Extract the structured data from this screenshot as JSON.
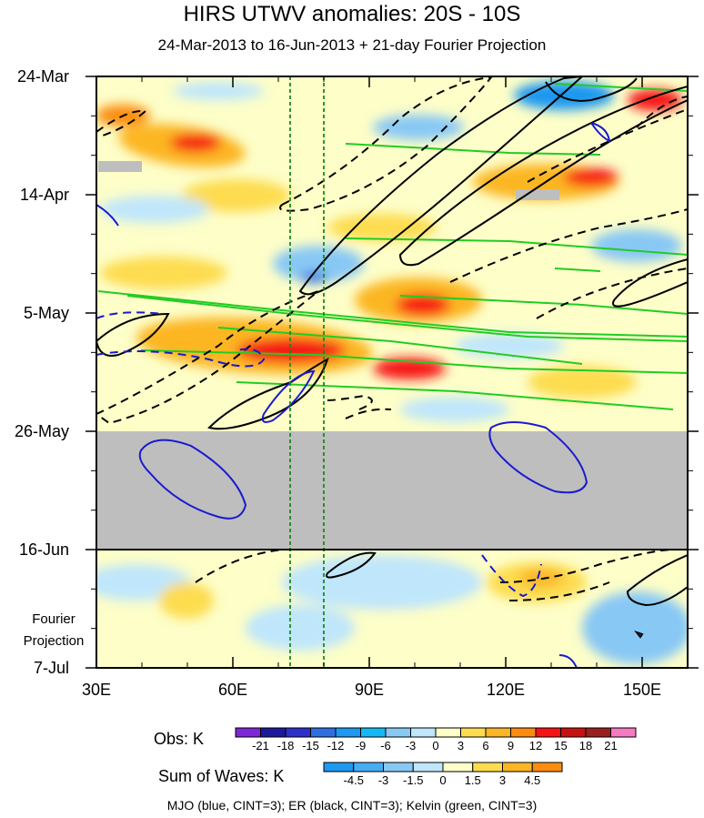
{
  "title": "HIRS UTWV anomalies: 20S - 10S",
  "subtitle": "24-Mar-2013 to 16-Jun-2013 + 21-day Fourier Projection",
  "projection_label": [
    "Fourier",
    "Projection"
  ],
  "obs_label": "Obs: K",
  "waves_label": "Sum of Waves: K",
  "credits": "MJO (blue, CINT=3); ER (black, CINT=3); Kelvin (green, CINT=3)",
  "chart_data": {
    "type": "heatmap",
    "title": "HIRS UTWV anomalies: 20S - 10S",
    "subtitle": "24-Mar-2013 to 16-Jun-2013 + 21-day Fourier Projection",
    "x_ticks": [
      "30E",
      "60E",
      "90E",
      "120E",
      "150E"
    ],
    "x_tick_values": [
      30,
      60,
      90,
      120,
      150
    ],
    "xlim": [
      30,
      160
    ],
    "y_ticks": [
      "24-Mar",
      "14-Apr",
      "5-May",
      "26-May",
      "16-Jun",
      "7-Jul"
    ],
    "y_tick_days": [
      0,
      21,
      42,
      63,
      84,
      105
    ],
    "ylim_days": [
      0,
      105
    ],
    "obs_end_day": 84,
    "missing_data_days": [
      63,
      84
    ],
    "reference_lon_lines": [
      72.5,
      80
    ],
    "obs_colorbar": {
      "label": "Obs: K",
      "ticks": [
        "-21",
        "-18",
        "-15",
        "-12",
        "-9",
        "-6",
        "-3",
        "0",
        "3",
        "6",
        "9",
        "12",
        "15",
        "18",
        "21"
      ],
      "colors": [
        "#7e27d6",
        "#1a1a9a",
        "#2f2fc9",
        "#2e6fe0",
        "#1e98f0",
        "#16b8f4",
        "#88c8f5",
        "#bfe6fb",
        "#fdfec8",
        "#fddc50",
        "#fcb624",
        "#fb8c10",
        "#f61313",
        "#c71111",
        "#9a2020",
        "#f57ac1"
      ]
    },
    "waves_colorbar": {
      "label": "Sum of Waves: K",
      "ticks": [
        "-4.5",
        "-3",
        "-1.5",
        "0",
        "1.5",
        "3",
        "4.5"
      ],
      "colors": [
        "#1e98f0",
        "#45aef3",
        "#88c8f5",
        "#bfe6fb",
        "#fdfec8",
        "#fddc50",
        "#fcb624",
        "#fb8c10"
      ]
    },
    "contours": [
      {
        "name": "MJO (blue, CINT=3)",
        "color": "#1a1ad0"
      },
      {
        "name": "ER (black, CINT=3)",
        "color": "#000000"
      },
      {
        "name": "Kelvin (green, CINT=3)",
        "color": "#22cc22"
      }
    ]
  }
}
